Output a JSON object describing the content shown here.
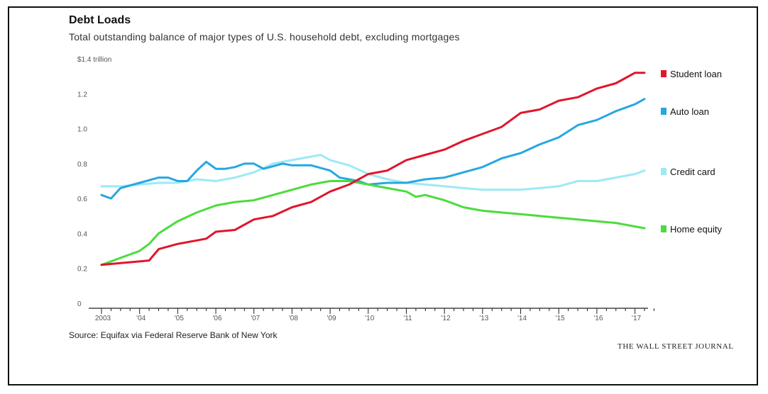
{
  "title": "Debt Loads",
  "subtitle": "Total outstanding balance of major types of U.S. household debt, excluding mortgages",
  "source": "Source: Equifax via Federal Reserve Bank of New York",
  "brand": "THE WALL STREET JOURNAL",
  "chart_data": {
    "type": "line",
    "title": "Debt Loads",
    "ylabel": "",
    "y_unit_label": "$1.4 trillion",
    "ylim": [
      0,
      1.4
    ],
    "y_ticks": [
      0,
      0.2,
      0.4,
      0.6,
      0.8,
      1.0,
      1.2,
      1.4
    ],
    "y_tick_labels": [
      "0",
      "0.2",
      "0.4",
      "0.6",
      "0.8",
      "1.0",
      "1.2",
      "$1.4 trillion"
    ],
    "xlim": [
      2003.0,
      2017.5
    ],
    "x_ticks": [
      2003,
      2004,
      2005,
      2006,
      2007,
      2008,
      2009,
      2010,
      2011,
      2012,
      2013,
      2014,
      2015,
      2016,
      2017
    ],
    "x_tick_labels": [
      "2003",
      "'04",
      "'05",
      "'06",
      "'07",
      "'08",
      "'09",
      "'10",
      "'11",
      "'12",
      "'13",
      "'14",
      "'15",
      "'16",
      "'17"
    ],
    "grid": false,
    "legend": "right",
    "series": [
      {
        "name": "Student loan",
        "color": "#e0162b",
        "values": [
          [
            2003.0,
            0.22
          ],
          [
            2003.5,
            0.23
          ],
          [
            2004.0,
            0.24
          ],
          [
            2004.25,
            0.245
          ],
          [
            2004.5,
            0.31
          ],
          [
            2005.0,
            0.34
          ],
          [
            2005.5,
            0.36
          ],
          [
            2005.75,
            0.37
          ],
          [
            2006.0,
            0.41
          ],
          [
            2006.5,
            0.42
          ],
          [
            2007.0,
            0.48
          ],
          [
            2007.5,
            0.5
          ],
          [
            2008.0,
            0.55
          ],
          [
            2008.5,
            0.58
          ],
          [
            2009.0,
            0.64
          ],
          [
            2009.5,
            0.68
          ],
          [
            2010.0,
            0.74
          ],
          [
            2010.5,
            0.76
          ],
          [
            2011.0,
            0.82
          ],
          [
            2011.5,
            0.85
          ],
          [
            2012.0,
            0.88
          ],
          [
            2012.5,
            0.93
          ],
          [
            2013.0,
            0.97
          ],
          [
            2013.5,
            1.01
          ],
          [
            2014.0,
            1.09
          ],
          [
            2014.5,
            1.11
          ],
          [
            2015.0,
            1.16
          ],
          [
            2015.5,
            1.18
          ],
          [
            2016.0,
            1.23
          ],
          [
            2016.5,
            1.26
          ],
          [
            2017.0,
            1.32
          ],
          [
            2017.25,
            1.32
          ]
        ]
      },
      {
        "name": "Auto loan",
        "color": "#27a7e1",
        "values": [
          [
            2003.0,
            0.62
          ],
          [
            2003.25,
            0.6
          ],
          [
            2003.5,
            0.66
          ],
          [
            2004.0,
            0.69
          ],
          [
            2004.5,
            0.72
          ],
          [
            2004.75,
            0.72
          ],
          [
            2005.0,
            0.7
          ],
          [
            2005.25,
            0.7
          ],
          [
            2005.5,
            0.76
          ],
          [
            2005.75,
            0.81
          ],
          [
            2006.0,
            0.77
          ],
          [
            2006.25,
            0.77
          ],
          [
            2006.5,
            0.78
          ],
          [
            2006.75,
            0.8
          ],
          [
            2007.0,
            0.8
          ],
          [
            2007.25,
            0.77
          ],
          [
            2007.75,
            0.8
          ],
          [
            2008.0,
            0.79
          ],
          [
            2008.5,
            0.79
          ],
          [
            2009.0,
            0.76
          ],
          [
            2009.25,
            0.72
          ],
          [
            2009.75,
            0.7
          ],
          [
            2010.0,
            0.68
          ],
          [
            2010.5,
            0.69
          ],
          [
            2011.0,
            0.69
          ],
          [
            2011.5,
            0.71
          ],
          [
            2012.0,
            0.72
          ],
          [
            2012.5,
            0.75
          ],
          [
            2013.0,
            0.78
          ],
          [
            2013.5,
            0.83
          ],
          [
            2014.0,
            0.86
          ],
          [
            2014.5,
            0.91
          ],
          [
            2015.0,
            0.95
          ],
          [
            2015.5,
            1.02
          ],
          [
            2016.0,
            1.05
          ],
          [
            2016.5,
            1.1
          ],
          [
            2017.0,
            1.14
          ],
          [
            2017.25,
            1.17
          ]
        ]
      },
      {
        "name": "Credit card",
        "color": "#9ceaf5",
        "values": [
          [
            2003.0,
            0.67
          ],
          [
            2003.5,
            0.67
          ],
          [
            2004.0,
            0.68
          ],
          [
            2004.5,
            0.69
          ],
          [
            2005.0,
            0.69
          ],
          [
            2005.5,
            0.71
          ],
          [
            2006.0,
            0.7
          ],
          [
            2006.5,
            0.72
          ],
          [
            2007.0,
            0.75
          ],
          [
            2007.5,
            0.8
          ],
          [
            2008.0,
            0.82
          ],
          [
            2008.5,
            0.84
          ],
          [
            2008.75,
            0.85
          ],
          [
            2009.0,
            0.82
          ],
          [
            2009.5,
            0.79
          ],
          [
            2010.0,
            0.74
          ],
          [
            2010.5,
            0.71
          ],
          [
            2011.0,
            0.69
          ],
          [
            2011.5,
            0.68
          ],
          [
            2012.0,
            0.67
          ],
          [
            2012.5,
            0.66
          ],
          [
            2013.0,
            0.65
          ],
          [
            2013.5,
            0.65
          ],
          [
            2014.0,
            0.65
          ],
          [
            2014.5,
            0.66
          ],
          [
            2015.0,
            0.67
          ],
          [
            2015.5,
            0.7
          ],
          [
            2016.0,
            0.7
          ],
          [
            2016.5,
            0.72
          ],
          [
            2017.0,
            0.74
          ],
          [
            2017.25,
            0.76
          ]
        ]
      },
      {
        "name": "Home equity",
        "color": "#4bdc3d",
        "values": [
          [
            2003.0,
            0.22
          ],
          [
            2003.25,
            0.24
          ],
          [
            2003.5,
            0.26
          ],
          [
            2004.0,
            0.3
          ],
          [
            2004.25,
            0.34
          ],
          [
            2004.5,
            0.4
          ],
          [
            2005.0,
            0.47
          ],
          [
            2005.5,
            0.52
          ],
          [
            2006.0,
            0.56
          ],
          [
            2006.5,
            0.58
          ],
          [
            2007.0,
            0.59
          ],
          [
            2007.5,
            0.62
          ],
          [
            2008.0,
            0.65
          ],
          [
            2008.5,
            0.68
          ],
          [
            2009.0,
            0.7
          ],
          [
            2009.5,
            0.7
          ],
          [
            2010.0,
            0.68
          ],
          [
            2010.5,
            0.66
          ],
          [
            2011.0,
            0.64
          ],
          [
            2011.25,
            0.61
          ],
          [
            2011.5,
            0.62
          ],
          [
            2012.0,
            0.59
          ],
          [
            2012.5,
            0.55
          ],
          [
            2013.0,
            0.53
          ],
          [
            2013.5,
            0.52
          ],
          [
            2014.0,
            0.51
          ],
          [
            2014.5,
            0.5
          ],
          [
            2015.0,
            0.49
          ],
          [
            2015.5,
            0.48
          ],
          [
            2016.0,
            0.47
          ],
          [
            2016.5,
            0.46
          ],
          [
            2017.0,
            0.44
          ],
          [
            2017.25,
            0.43
          ]
        ]
      }
    ]
  }
}
